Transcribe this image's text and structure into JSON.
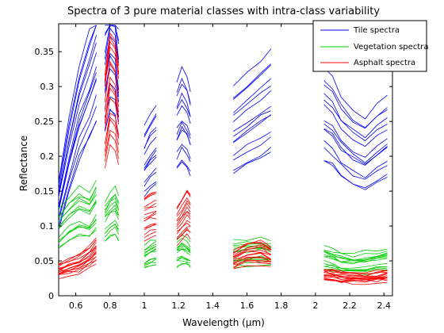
{
  "chart_data": {
    "type": "line",
    "title": "Spectra of 3 pure material classes with intra-class variability",
    "xlabel": "Wavelength (µm)",
    "ylabel": "Reflectance",
    "xlim": [
      0.5,
      2.45
    ],
    "ylim": [
      0,
      0.39
    ],
    "xticks": [
      0.6,
      0.8,
      1,
      1.2,
      1.4,
      1.6,
      1.8,
      2,
      2.2,
      2.4
    ],
    "xtick_labels": [
      "0.6",
      "0.8",
      "1",
      "1.2",
      "1.4",
      "1.6",
      "1.8",
      "2",
      "2.2",
      "2.4"
    ],
    "yticks": [
      0,
      0.05,
      0.1,
      0.15,
      0.2,
      0.25,
      0.3,
      0.35
    ],
    "ytick_labels": [
      "0",
      "0.05",
      "0.1",
      "0.15",
      "0.2",
      "0.25",
      "0.3",
      "0.35"
    ],
    "grid": false,
    "legend_position": "top-right",
    "wavelength_segments": [
      [
        0.5,
        0.72
      ],
      [
        0.77,
        0.85
      ],
      [
        1.0,
        1.07
      ],
      [
        1.19,
        1.27
      ],
      [
        1.52,
        1.74
      ],
      [
        2.05,
        2.42
      ]
    ],
    "series": [
      {
        "name": "Tile spectra",
        "color": "#0000ff",
        "curves": 14,
        "segments": [
          {
            "x": [
              0.5,
              0.56,
              0.62,
              0.68,
              0.72
            ],
            "y": [
              0.13,
              0.2,
              0.26,
              0.3,
              0.33
            ]
          },
          {
            "x": [
              0.77,
              0.8,
              0.83,
              0.85
            ],
            "y": [
              0.31,
              0.35,
              0.34,
              0.3
            ]
          },
          {
            "x": [
              1.0,
              1.035,
              1.07
            ],
            "y": [
              0.19,
              0.205,
              0.215
            ]
          },
          {
            "x": [
              1.19,
              1.22,
              1.25,
              1.27
            ],
            "y": [
              0.24,
              0.255,
              0.245,
              0.23
            ]
          },
          {
            "x": [
              1.52,
              1.6,
              1.68,
              1.74
            ],
            "y": [
              0.235,
              0.25,
              0.265,
              0.275
            ]
          },
          {
            "x": [
              2.05,
              2.1,
              2.15,
              2.22,
              2.29,
              2.36,
              2.42
            ],
            "y": [
              0.255,
              0.245,
              0.225,
              0.21,
              0.2,
              0.215,
              0.225
            ]
          }
        ]
      },
      {
        "name": "Vegetation spectra",
        "color": "#00cc00",
        "curves": 14,
        "segments": [
          {
            "x": [
              0.5,
              0.56,
              0.62,
              0.68,
              0.72
            ],
            "y": [
              0.095,
              0.11,
              0.12,
              0.115,
              0.13
            ]
          },
          {
            "x": [
              0.77,
              0.8,
              0.83,
              0.85
            ],
            "y": [
              0.105,
              0.115,
              0.12,
              0.11
            ]
          },
          {
            "x": [
              1.0,
              1.035,
              1.07
            ],
            "y": [
              0.055,
              0.06,
              0.062
            ]
          },
          {
            "x": [
              1.19,
              1.22,
              1.25,
              1.27
            ],
            "y": [
              0.06,
              0.065,
              0.062,
              0.058
            ]
          },
          {
            "x": [
              1.52,
              1.6,
              1.68,
              1.74
            ],
            "y": [
              0.06,
              0.062,
              0.063,
              0.062
            ]
          },
          {
            "x": [
              2.05,
              2.1,
              2.15,
              2.22,
              2.29,
              2.36,
              2.42
            ],
            "y": [
              0.055,
              0.052,
              0.048,
              0.046,
              0.047,
              0.05,
              0.052
            ]
          }
        ]
      },
      {
        "name": "Asphalt spectra",
        "color": "#ff0000",
        "curves": 16,
        "segments": [
          {
            "x": [
              0.5,
              0.56,
              0.62,
              0.68,
              0.72
            ],
            "y": [
              0.035,
              0.04,
              0.045,
              0.055,
              0.065
            ]
          },
          {
            "x": [
              0.77,
              0.8,
              0.83,
              0.85
            ],
            "y": [
              0.25,
              0.3,
              0.29,
              0.26
            ]
          },
          {
            "x": [
              1.0,
              1.035,
              1.07
            ],
            "y": [
              0.11,
              0.115,
              0.118
            ]
          },
          {
            "x": [
              1.19,
              1.22,
              1.25,
              1.27
            ],
            "y": [
              0.1,
              0.11,
              0.12,
              0.115
            ]
          },
          {
            "x": [
              1.52,
              1.6,
              1.68,
              1.74
            ],
            "y": [
              0.05,
              0.06,
              0.062,
              0.055
            ]
          },
          {
            "x": [
              2.05,
              2.1,
              2.15,
              2.22,
              2.29,
              2.36,
              2.42
            ],
            "y": [
              0.03,
              0.028,
              0.026,
              0.025,
              0.024,
              0.026,
              0.028
            ]
          }
        ]
      }
    ]
  }
}
